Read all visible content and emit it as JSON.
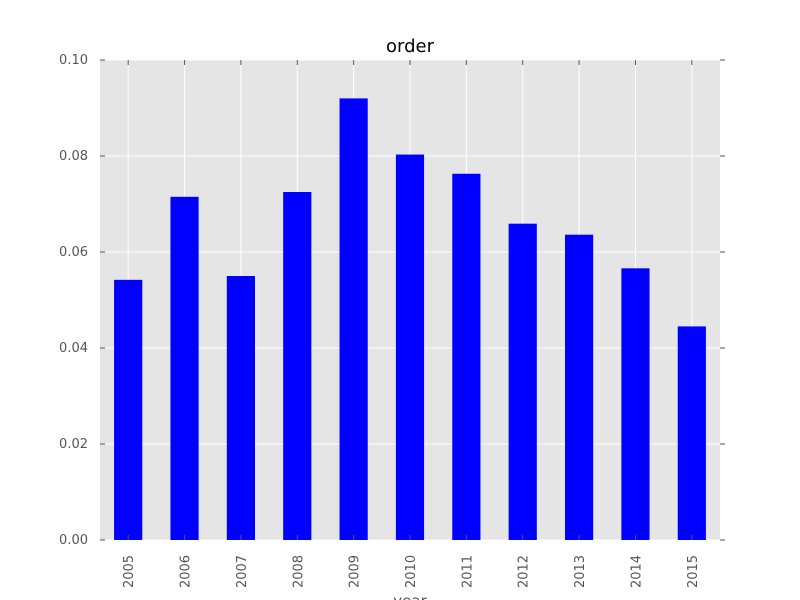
{
  "chart_data": {
    "type": "bar",
    "title": "order",
    "xlabel": "year",
    "ylabel": "",
    "categories": [
      "2005",
      "2006",
      "2007",
      "2008",
      "2009",
      "2010",
      "2011",
      "2012",
      "2013",
      "2014",
      "2015"
    ],
    "values": [
      0.0542,
      0.0715,
      0.055,
      0.0725,
      0.092,
      0.0803,
      0.0763,
      0.0659,
      0.0636,
      0.0566,
      0.0445
    ],
    "ylim": [
      0,
      0.1
    ],
    "yticks": [
      "0.00",
      "0.02",
      "0.04",
      "0.06",
      "0.08",
      "0.10"
    ],
    "grid": true,
    "bar_color": "#0000ff",
    "plot_background": "#e5e5e5",
    "grid_color": "#ffffff"
  }
}
